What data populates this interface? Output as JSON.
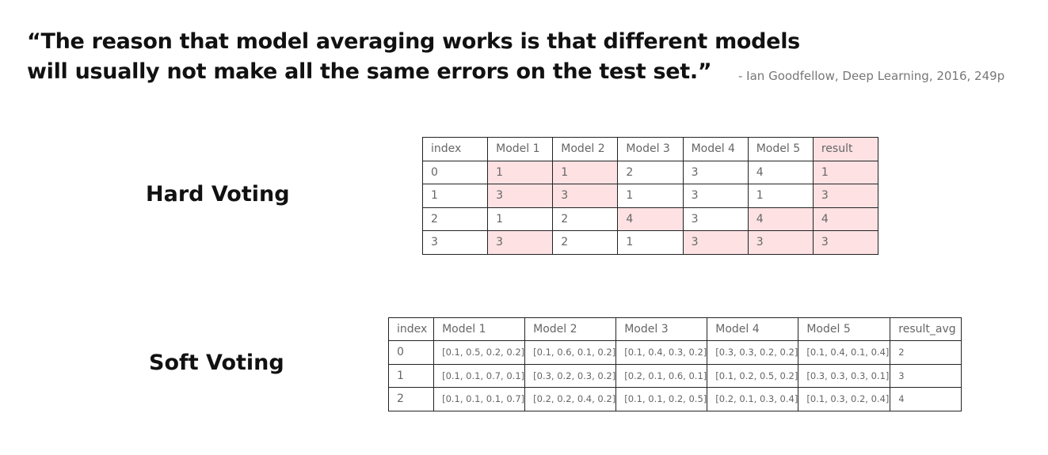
{
  "quote": {
    "line1": "“The reason that model averaging works is that different models",
    "line2": "will usually not make all the same errors on the test set.”",
    "attribution": "- Ian Goodfellow, Deep Learning, 2016, 249p"
  },
  "hard_voting": {
    "label": "Hard Voting",
    "highlight_color": "#fde1e3",
    "headers": [
      "index",
      "Model 1",
      "Model 2",
      "Model 3",
      "Model 4",
      "Model 5",
      "result"
    ],
    "rows": [
      [
        "0",
        "1",
        "1",
        "2",
        "3",
        "4",
        "1"
      ],
      [
        "1",
        "3",
        "3",
        "1",
        "3",
        "1",
        "3"
      ],
      [
        "2",
        "1",
        "2",
        "4",
        "3",
        "4",
        "4"
      ],
      [
        "3",
        "3",
        "2",
        "1",
        "3",
        "3",
        "3"
      ]
    ],
    "highlighted": [
      [
        false,
        true,
        true,
        false,
        false,
        false,
        true
      ],
      [
        false,
        true,
        true,
        false,
        false,
        false,
        true
      ],
      [
        false,
        false,
        false,
        true,
        false,
        true,
        true
      ],
      [
        false,
        true,
        false,
        false,
        true,
        true,
        true
      ]
    ]
  },
  "soft_voting": {
    "label": "Soft Voting",
    "headers": [
      "index",
      "Model 1",
      "Model 2",
      "Model 3",
      "Model 4",
      "Model 5",
      "result_avg"
    ],
    "rows": [
      [
        "0",
        "[0.1, 0.5, 0.2, 0.2]",
        "[0.1, 0.6, 0.1, 0.2]",
        "[0.1, 0.4, 0.3, 0.2]",
        "[0.3, 0.3, 0.2, 0.2]",
        "[0.1, 0.4, 0.1, 0.4]",
        "2"
      ],
      [
        "1",
        "[0.1, 0.1, 0.7, 0.1]",
        "[0.3, 0.2, 0.3, 0.2]",
        "[0.2, 0.1, 0.6, 0.1]",
        "[0.1, 0.2, 0.5, 0.2]",
        "[0.3, 0.3, 0.3, 0.1]",
        "3"
      ],
      [
        "2",
        "[0.1, 0.1, 0.1, 0.7]",
        "[0.2, 0.2, 0.4, 0.2]",
        "[0.1, 0.1, 0.2, 0.5]",
        "[0.2, 0.1, 0.3, 0.4]",
        "[0.1, 0.3, 0.2, 0.4]",
        "4"
      ]
    ]
  }
}
